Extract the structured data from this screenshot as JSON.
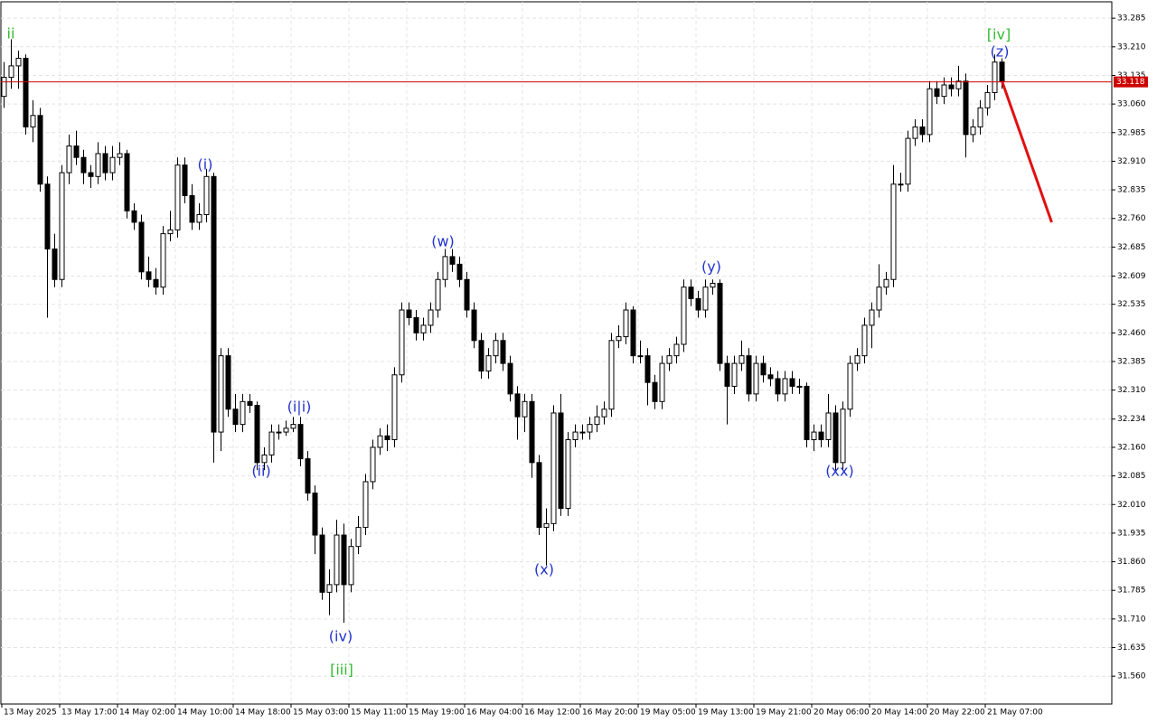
{
  "chart_data": {
    "type": "candlestick",
    "ylim": [
      31.487,
      33.328
    ],
    "yticks": [
      33.285,
      {
        "value": 33.21,
        "label": "33.210"
      },
      33.135,
      {
        "value": 33.06,
        "label": "33.060"
      },
      32.985,
      {
        "value": 32.91,
        "label": "32.910"
      },
      32.835,
      {
        "value": 32.76,
        "label": "32.760"
      },
      32.685,
      32.609,
      32.535,
      {
        "value": 32.46,
        "label": "32.460"
      },
      32.385,
      {
        "value": 32.31,
        "label": "32.310"
      },
      32.234,
      {
        "value": 32.16,
        "label": "32.160"
      },
      32.085,
      {
        "value": 32.01,
        "label": "32.010"
      },
      31.935,
      {
        "value": 31.86,
        "label": "31.860"
      },
      31.785,
      {
        "value": 31.71,
        "label": "31.710"
      },
      31.635,
      {
        "value": 31.56,
        "label": "31.560"
      }
    ],
    "x_labels": [
      "13 May 2025",
      "13 May 17:00",
      "14 May 02:00",
      "14 May 10:00",
      "14 May 18:00",
      "15 May 03:00",
      "15 May 11:00",
      "15 May 19:00",
      "16 May 04:00",
      "16 May 12:00",
      "16 May 20:00",
      "19 May 05:00",
      "19 May 13:00",
      "19 May 21:00",
      "20 May 06:00",
      "20 May 14:00",
      "20 May 22:00",
      "21 May 07:00"
    ],
    "grid": true,
    "bull_color": "#ffffff",
    "bear_color": "#000000",
    "price_line": 33.118,
    "price_line_color": "#cc0000",
    "forecast": {
      "values": [
        33.12,
        32.75
      ],
      "color": "#e01010"
    },
    "annotations": [
      {
        "text": "ii",
        "color": "#33bb33"
      },
      {
        "text": "(i)",
        "color": "#2233cc"
      },
      {
        "text": "(ii)",
        "color": "#2233cc"
      },
      {
        "text": "(i|i)",
        "color": "#2233cc"
      },
      {
        "text": "(iv)",
        "color": "#2233cc"
      },
      {
        "text": "[iii]",
        "color": "#33bb33"
      },
      {
        "text": "(w)",
        "color": "#2233cc"
      },
      {
        "text": "(x)",
        "color": "#2233cc"
      },
      {
        "text": "(y)",
        "color": "#2233cc"
      },
      {
        "text": "(xx)",
        "color": "#2233cc"
      },
      {
        "text": "[iv]",
        "color": "#33bb33"
      },
      {
        "text": "(z)",
        "color": "#2233cc"
      }
    ],
    "ohlc": [
      [
        33.08,
        33.17,
        33.05,
        33.13
      ],
      [
        33.13,
        33.23,
        33.1,
        33.16
      ],
      [
        33.16,
        33.2,
        33.1,
        33.18
      ],
      [
        33.18,
        33.19,
        32.98,
        33.0
      ],
      [
        33.0,
        33.07,
        32.96,
        33.03
      ],
      [
        33.03,
        33.05,
        32.83,
        32.85
      ],
      [
        32.85,
        32.87,
        32.5,
        32.68
      ],
      [
        32.68,
        32.72,
        32.58,
        32.6
      ],
      [
        32.6,
        32.9,
        32.58,
        32.88
      ],
      [
        32.88,
        32.98,
        32.85,
        32.95
      ],
      [
        32.95,
        32.99,
        32.9,
        32.92
      ],
      [
        32.92,
        32.94,
        32.85,
        32.88
      ],
      [
        32.88,
        32.9,
        32.84,
        32.87
      ],
      [
        32.87,
        32.96,
        32.85,
        32.93
      ],
      [
        32.93,
        32.95,
        32.86,
        32.88
      ],
      [
        32.88,
        32.95,
        32.86,
        32.92
      ],
      [
        32.92,
        32.96,
        32.9,
        32.93
      ],
      [
        32.93,
        32.94,
        32.76,
        32.78
      ],
      [
        32.78,
        32.8,
        32.73,
        32.75
      ],
      [
        32.75,
        32.77,
        32.6,
        32.62
      ],
      [
        32.62,
        32.66,
        32.58,
        32.6
      ],
      [
        32.6,
        32.63,
        32.56,
        32.58
      ],
      [
        32.58,
        32.74,
        32.56,
        32.72
      ],
      [
        32.72,
        32.78,
        32.7,
        32.73
      ],
      [
        32.73,
        32.92,
        32.71,
        32.9
      ],
      [
        32.9,
        32.92,
        32.8,
        32.82
      ],
      [
        32.82,
        32.85,
        32.73,
        32.75
      ],
      [
        32.75,
        32.8,
        32.73,
        32.77
      ],
      [
        32.77,
        32.89,
        32.75,
        32.87
      ],
      [
        32.87,
        32.88,
        32.12,
        32.2
      ],
      [
        32.2,
        32.42,
        32.15,
        32.4
      ],
      [
        32.4,
        32.42,
        32.24,
        32.26
      ],
      [
        32.26,
        32.3,
        32.2,
        32.22
      ],
      [
        32.22,
        32.3,
        32.2,
        32.28
      ],
      [
        32.28,
        32.3,
        32.25,
        32.27
      ],
      [
        32.27,
        32.28,
        32.1,
        32.12
      ],
      [
        32.12,
        32.16,
        32.1,
        32.14
      ],
      [
        32.14,
        32.22,
        32.12,
        32.2
      ],
      [
        32.2,
        32.22,
        32.18,
        32.2
      ],
      [
        32.2,
        32.23,
        32.19,
        32.21
      ],
      [
        32.21,
        32.24,
        32.2,
        32.22
      ],
      [
        32.22,
        32.24,
        32.11,
        32.13
      ],
      [
        32.13,
        32.15,
        32.02,
        32.04
      ],
      [
        32.04,
        32.06,
        31.88,
        31.93
      ],
      [
        31.93,
        31.95,
        31.76,
        31.78
      ],
      [
        31.78,
        31.84,
        31.72,
        31.8
      ],
      [
        31.8,
        31.97,
        31.78,
        31.93
      ],
      [
        31.93,
        31.96,
        31.7,
        31.8
      ],
      [
        31.8,
        31.92,
        31.78,
        31.9
      ],
      [
        31.9,
        31.98,
        31.88,
        31.95
      ],
      [
        31.95,
        32.09,
        31.93,
        32.07
      ],
      [
        32.07,
        32.18,
        32.05,
        32.16
      ],
      [
        32.16,
        32.21,
        32.14,
        32.19
      ],
      [
        32.19,
        32.22,
        32.15,
        32.18
      ],
      [
        32.18,
        32.37,
        32.16,
        32.35
      ],
      [
        32.35,
        32.54,
        32.33,
        32.52
      ],
      [
        32.52,
        32.54,
        32.48,
        32.5
      ],
      [
        32.5,
        32.52,
        32.44,
        32.46
      ],
      [
        32.46,
        32.5,
        32.44,
        32.48
      ],
      [
        32.48,
        32.54,
        32.46,
        32.52
      ],
      [
        32.52,
        32.62,
        32.5,
        32.6
      ],
      [
        32.6,
        32.68,
        32.58,
        32.66
      ],
      [
        32.66,
        32.68,
        32.62,
        32.64
      ],
      [
        32.64,
        32.66,
        32.58,
        32.6
      ],
      [
        32.6,
        32.62,
        32.5,
        32.52
      ],
      [
        32.52,
        32.54,
        32.42,
        32.44
      ],
      [
        32.44,
        32.46,
        32.34,
        32.36
      ],
      [
        32.36,
        32.42,
        32.34,
        32.4
      ],
      [
        32.4,
        32.46,
        32.38,
        32.44
      ],
      [
        32.44,
        32.46,
        32.36,
        32.38
      ],
      [
        32.38,
        32.4,
        32.28,
        32.3
      ],
      [
        32.3,
        32.32,
        32.18,
        32.24
      ],
      [
        32.24,
        32.3,
        32.2,
        32.28
      ],
      [
        32.28,
        32.3,
        32.08,
        32.12
      ],
      [
        32.12,
        32.14,
        31.93,
        31.95
      ],
      [
        31.95,
        32.0,
        31.85,
        31.96
      ],
      [
        31.96,
        32.27,
        31.94,
        32.25
      ],
      [
        32.25,
        32.3,
        31.98,
        32.0
      ],
      [
        32.0,
        32.2,
        31.98,
        32.18
      ],
      [
        32.18,
        32.22,
        32.16,
        32.2
      ],
      [
        32.2,
        32.22,
        32.18,
        32.2
      ],
      [
        32.2,
        32.24,
        32.18,
        32.22
      ],
      [
        32.22,
        32.27,
        32.2,
        32.24
      ],
      [
        32.24,
        32.28,
        32.22,
        32.26
      ],
      [
        32.26,
        32.46,
        32.24,
        32.44
      ],
      [
        32.44,
        32.48,
        32.42,
        32.45
      ],
      [
        32.45,
        32.54,
        32.43,
        32.52
      ],
      [
        32.52,
        32.53,
        32.38,
        32.4
      ],
      [
        32.4,
        32.44,
        32.38,
        32.4
      ],
      [
        32.4,
        32.42,
        32.27,
        32.33
      ],
      [
        32.33,
        32.35,
        32.26,
        32.28
      ],
      [
        32.28,
        32.4,
        32.26,
        32.38
      ],
      [
        32.38,
        32.42,
        32.36,
        32.4
      ],
      [
        32.4,
        32.45,
        32.38,
        32.43
      ],
      [
        32.43,
        32.6,
        32.41,
        32.58
      ],
      [
        32.58,
        32.6,
        32.53,
        32.55
      ],
      [
        32.55,
        32.57,
        32.5,
        32.52
      ],
      [
        32.52,
        32.6,
        32.5,
        32.58
      ],
      [
        32.58,
        32.6,
        32.56,
        32.59
      ],
      [
        32.59,
        32.6,
        32.36,
        32.38
      ],
      [
        32.38,
        32.4,
        32.22,
        32.32
      ],
      [
        32.32,
        32.4,
        32.3,
        32.38
      ],
      [
        32.38,
        32.44,
        32.36,
        32.4
      ],
      [
        32.4,
        32.42,
        32.28,
        32.3
      ],
      [
        32.3,
        32.4,
        32.28,
        32.38
      ],
      [
        32.38,
        32.4,
        32.33,
        32.35
      ],
      [
        32.35,
        32.37,
        32.32,
        32.34
      ],
      [
        32.34,
        32.36,
        32.28,
        32.3
      ],
      [
        32.3,
        32.36,
        32.28,
        32.34
      ],
      [
        32.34,
        32.36,
        32.3,
        32.32
      ],
      [
        32.32,
        32.34,
        32.3,
        32.32
      ],
      [
        32.32,
        32.33,
        32.16,
        32.18
      ],
      [
        32.18,
        32.22,
        32.15,
        32.2
      ],
      [
        32.2,
        32.22,
        32.16,
        32.18
      ],
      [
        32.18,
        32.3,
        32.16,
        32.25
      ],
      [
        32.25,
        32.27,
        32.1,
        32.12
      ],
      [
        32.12,
        32.28,
        32.1,
        32.26
      ],
      [
        32.26,
        32.4,
        32.24,
        32.38
      ],
      [
        32.38,
        32.42,
        32.36,
        32.4
      ],
      [
        32.4,
        32.5,
        32.38,
        32.48
      ],
      [
        32.48,
        32.54,
        32.42,
        32.52
      ],
      [
        32.52,
        32.64,
        32.5,
        32.58
      ],
      [
        32.58,
        32.62,
        32.56,
        32.6
      ],
      [
        32.6,
        32.9,
        32.58,
        32.85
      ],
      [
        32.85,
        32.88,
        32.83,
        32.85
      ],
      [
        32.85,
        32.99,
        32.83,
        32.97
      ],
      [
        32.97,
        33.02,
        32.95,
        33.0
      ],
      [
        33.0,
        33.02,
        32.96,
        32.98
      ],
      [
        32.98,
        33.12,
        32.96,
        33.1
      ],
      [
        33.1,
        33.12,
        33.06,
        33.08
      ],
      [
        33.08,
        33.13,
        33.06,
        33.11
      ],
      [
        33.11,
        33.13,
        33.08,
        33.1
      ],
      [
        33.1,
        33.16,
        33.08,
        33.12
      ],
      [
        33.12,
        33.14,
        32.92,
        32.98
      ],
      [
        32.98,
        33.02,
        32.96,
        33.0
      ],
      [
        33.0,
        33.07,
        32.98,
        33.05
      ],
      [
        33.05,
        33.11,
        33.03,
        33.09
      ],
      [
        33.09,
        33.19,
        33.07,
        33.17
      ],
      [
        33.17,
        33.18,
        33.1,
        33.12
      ]
    ]
  }
}
